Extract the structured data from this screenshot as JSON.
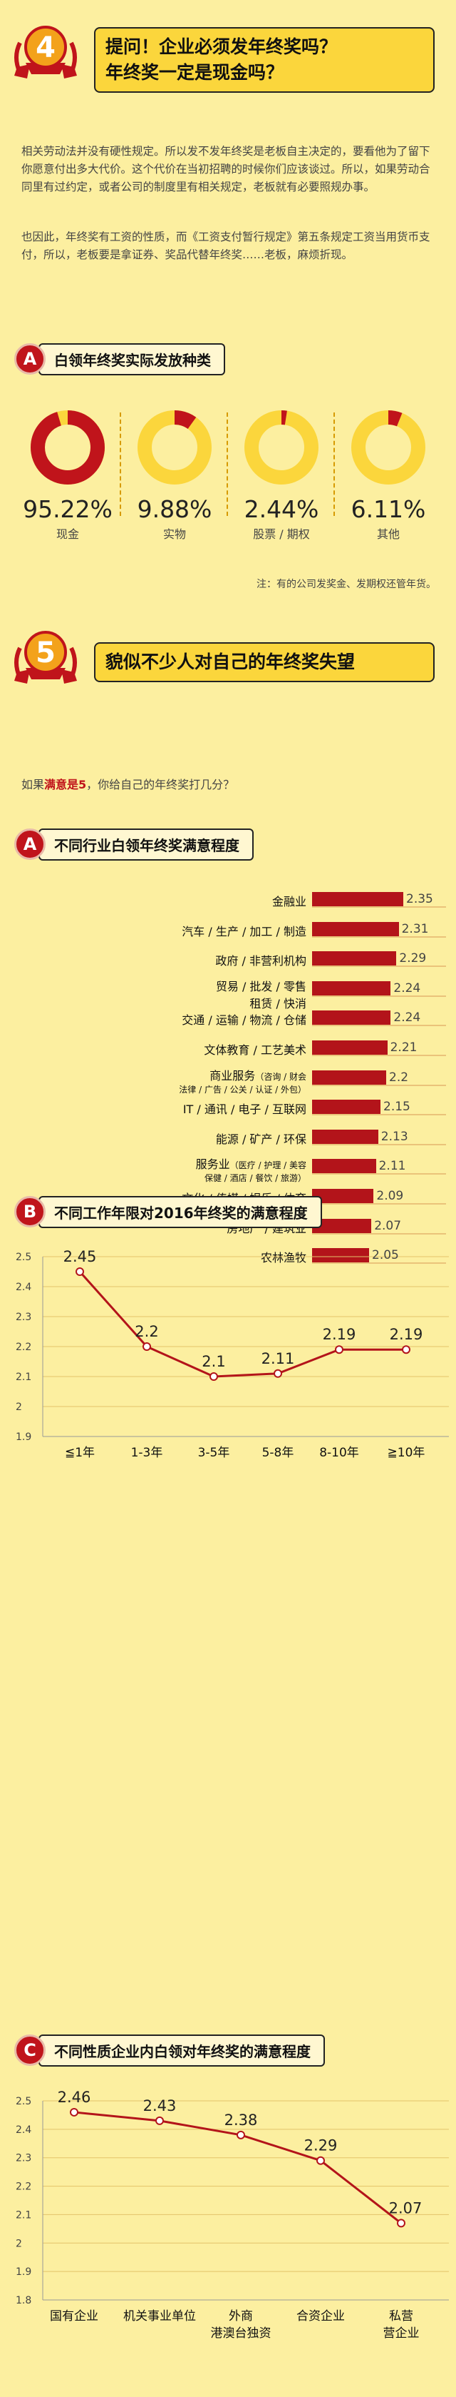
{
  "section4": {
    "number": "4",
    "title_line1": "提问！企业必须发年终奖吗？",
    "title_line2": "年终奖一定是现金吗？",
    "paragraph1": "相关劳动法并没有硬性规定。所以发不发年终奖是老板自主决定的，要看他为了留下你愿意付出多大代价。这个代价在当初招聘的时候你们应该谈过。所以，如果劳动合同里有过约定，或者公司的制度里有相关规定，老板就有必要照规办事。",
    "paragraph2": "也因此，年终奖有工资的性质，而《工资支付暂行规定》第五条规定工资当用货币支付，所以，老板要是拿证券、奖品代替年终奖……老板，麻烦折现。",
    "subA_badge": "A",
    "subA_title": "白领年终奖实际发放种类",
    "note": "注：有的公司发奖金、发期权还管年货。"
  },
  "donuts": [
    {
      "pct_label": "95.22%",
      "value": 95.22,
      "label": "现金"
    },
    {
      "pct_label": "9.88%",
      "value": 9.88,
      "label": "实物"
    },
    {
      "pct_label": "2.44%",
      "value": 2.44,
      "label": "股票 / 期权"
    },
    {
      "pct_label": "6.11%",
      "value": 6.11,
      "label": "其他"
    }
  ],
  "section5": {
    "number": "5",
    "title": "貌似不少人对自己的年终奖失望",
    "intro_prefix": "如果",
    "intro_highlight": "满意是5",
    "intro_suffix": "，你给自己的年终奖打几分？",
    "subA_badge": "A",
    "subA_title": "不同行业白领年终奖满意程度",
    "subB_badge": "B",
    "subB_title": "不同工作年限对2016年终奖的满意程度",
    "subC_badge": "C",
    "subC_title": "不同性质企业内白领对年终奖的满意程度"
  },
  "colors": {
    "accent_red": "#b3141a",
    "accent_yellow": "#fbd63c",
    "background": "#fcefa0"
  },
  "chart_data": [
    {
      "type": "pie",
      "categories": [
        "现金",
        "实物",
        "股票 / 期权",
        "其他"
      ],
      "values": [
        95.22,
        9.88,
        2.44,
        6.11
      ],
      "title": "白领年终奖实际发放种类"
    },
    {
      "type": "bar",
      "orientation": "horizontal",
      "title": "不同行业白领年终奖满意程度",
      "categories": [
        {
          "main": "金融业",
          "sub": ""
        },
        {
          "main": "汽车 / 生产 / 加工 / 制造",
          "sub": ""
        },
        {
          "main": "政府 / 非营利机构",
          "sub": ""
        },
        {
          "main": "贸易 / 批发 / 零售",
          "sub": "租赁 / 快消"
        },
        {
          "main": "交通 / 运输 / 物流 / 仓储",
          "sub": ""
        },
        {
          "main": "文体教育 / 工艺美术",
          "sub": ""
        },
        {
          "main": "商业服务",
          "main_small": "（咨询 / 财会",
          "sub": "法律 / 广告 / 公关 / 认证 / 外包）"
        },
        {
          "main": "IT / 通讯 / 电子 / 互联网",
          "sub": ""
        },
        {
          "main": "能源 / 矿产 / 环保",
          "sub": ""
        },
        {
          "main": "服务业",
          "main_small": "（医疗 / 护理 / 美容",
          "sub": "保健 / 酒店 / 餐饮 / 旅游）"
        },
        {
          "main": "文化 / 传媒 / 娱乐 / 体育",
          "sub": ""
        },
        {
          "main": "房地产 / 建筑业",
          "sub": ""
        },
        {
          "main": "农林渔牧",
          "sub": ""
        }
      ],
      "values": [
        2.35,
        2.31,
        2.29,
        2.24,
        2.24,
        2.21,
        2.2,
        2.15,
        2.13,
        2.11,
        2.09,
        2.07,
        2.05
      ],
      "value_labels": [
        "2.35",
        "2.31",
        "2.29",
        "2.24",
        "2.24",
        "2.21",
        "2.2",
        "2.15",
        "2.13",
        "2.11",
        "2.09",
        "2.07",
        "2.05"
      ]
    },
    {
      "type": "line",
      "title": "不同工作年限对2016年终奖的满意程度",
      "categories": [
        "≦1年",
        "1-3年",
        "3-5年",
        "5-8年",
        "8-10年",
        "≧10年"
      ],
      "values": [
        2.45,
        2.2,
        2.1,
        2.11,
        2.19,
        2.19
      ],
      "value_labels": [
        "2.45",
        "2.2",
        "2.1",
        "2.11",
        "2.19",
        "2.19"
      ],
      "ylim": [
        1.9,
        2.5
      ],
      "yticks": [
        "2.5",
        "2.4",
        "2.3",
        "2.2",
        "2.1",
        "2",
        "1.9"
      ],
      "grid": true
    },
    {
      "type": "line",
      "title": "不同性质企业内白领对年终奖的满意程度",
      "categories": [
        [
          "国有企业"
        ],
        [
          "机关事业单位"
        ],
        [
          "外商",
          "港澳台独资"
        ],
        [
          "合资企业"
        ],
        [
          "私营",
          "营企业"
        ]
      ],
      "values": [
        2.46,
        2.43,
        2.38,
        2.29,
        2.07
      ],
      "value_labels": [
        "2.46",
        "2.43",
        "2.38",
        "2.29",
        "2.07"
      ],
      "ylim": [
        1.8,
        2.5
      ],
      "yticks": [
        "2.5",
        "2.4",
        "2.3",
        "2.2",
        "2.1",
        "2",
        "1.9",
        "1.8"
      ],
      "grid": true
    }
  ]
}
